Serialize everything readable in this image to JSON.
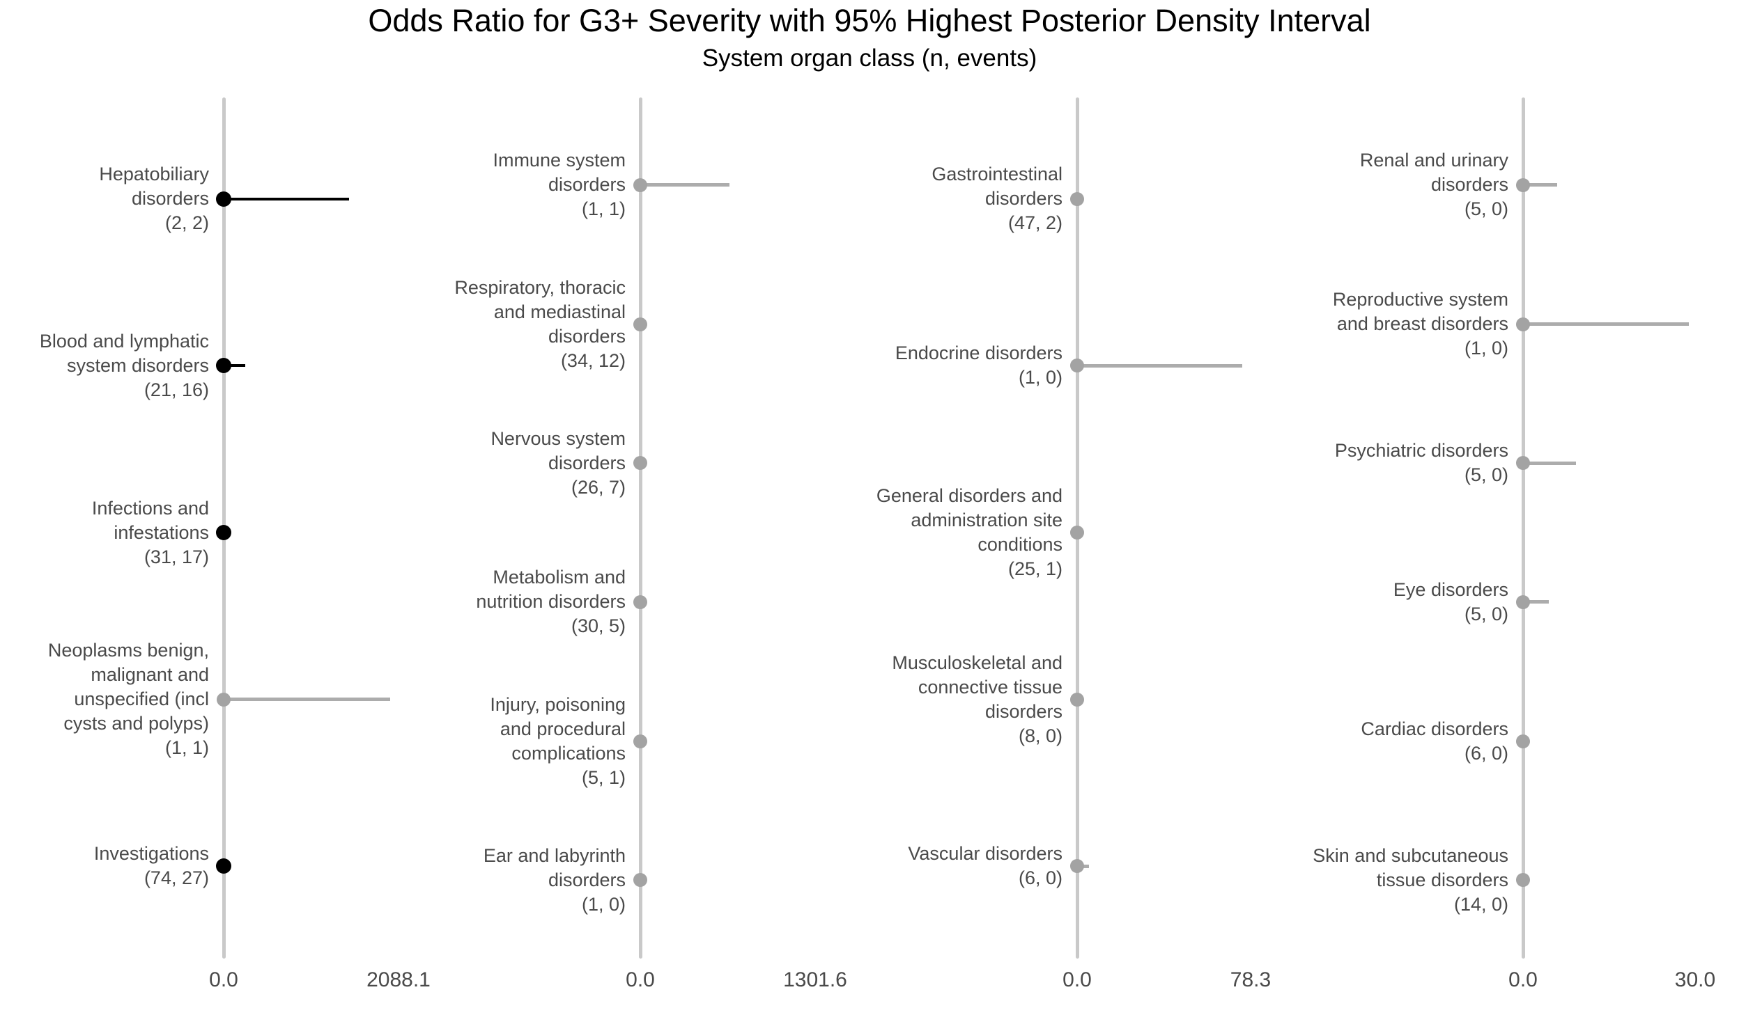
{
  "chart_data": {
    "type": "scatter",
    "subtype": "forest-plot-dot-interval",
    "title": "Odds Ratio for G3+ Severity with 95% Highest Posterior Density Interval",
    "subtitle": "System organ class (n, events)",
    "legend_position": "none",
    "grid": false,
    "style": {
      "black": "#000000",
      "gray_point": "#a3a3a3",
      "gray_line": "#acacac",
      "axis_line": "#c9c9c9",
      "label_text": "#4a4a4a",
      "title_text": "#000000",
      "background": "#ffffff"
    },
    "panels": [
      {
        "x_min": 0.0,
        "x_max": 2088.1,
        "x_tick_labels": [
          "0.0",
          "2088.1"
        ],
        "rows": [
          {
            "label_lines": [
              "Hepatobiliary",
              "disorders"
            ],
            "n": 2,
            "events": 2,
            "n_events_label": "(2, 2)",
            "or_point": 0.0,
            "hpd_lower": 0.0,
            "hpd_upper": 1497,
            "emphasis": "black"
          },
          {
            "label_lines": [
              "Blood and lymphatic",
              "system disorders"
            ],
            "n": 21,
            "events": 16,
            "n_events_label": "(21, 16)",
            "or_point": 0.0,
            "hpd_lower": 0.0,
            "hpd_upper": 258,
            "emphasis": "black"
          },
          {
            "label_lines": [
              "Infections and",
              "infestations"
            ],
            "n": 31,
            "events": 17,
            "n_events_label": "(31, 17)",
            "or_point": 0.0,
            "hpd_lower": 0.0,
            "hpd_upper": 0,
            "emphasis": "black"
          },
          {
            "label_lines": [
              "Neoplasms benign,",
              "malignant and",
              "unspecified (incl",
              "cysts and polyps)"
            ],
            "n": 1,
            "events": 1,
            "n_events_label": "(1, 1)",
            "or_point": 0.0,
            "hpd_lower": 0.0,
            "hpd_upper": 1988,
            "emphasis": "gray"
          },
          {
            "label_lines": [
              "Investigations"
            ],
            "n": 74,
            "events": 27,
            "n_events_label": "(74, 27)",
            "or_point": 0.0,
            "hpd_lower": 0.0,
            "hpd_upper": 0,
            "emphasis": "black"
          }
        ]
      },
      {
        "x_min": 0.0,
        "x_max": 1301.6,
        "x_tick_labels": [
          "0.0",
          "1301.6"
        ],
        "rows": [
          {
            "label_lines": [
              "Immune system",
              "disorders"
            ],
            "n": 1,
            "events": 1,
            "n_events_label": "(1, 1)",
            "or_point": 0.0,
            "hpd_lower": 0.0,
            "hpd_upper": 664,
            "emphasis": "gray"
          },
          {
            "label_lines": [
              "Respiratory, thoracic",
              "and mediastinal",
              "disorders"
            ],
            "n": 34,
            "events": 12,
            "n_events_label": "(34, 12)",
            "or_point": 0.0,
            "hpd_lower": 0.0,
            "hpd_upper": 0,
            "emphasis": "gray"
          },
          {
            "label_lines": [
              "Nervous system",
              "disorders"
            ],
            "n": 26,
            "events": 7,
            "n_events_label": "(26, 7)",
            "or_point": 0.0,
            "hpd_lower": 0.0,
            "hpd_upper": 0,
            "emphasis": "gray"
          },
          {
            "label_lines": [
              "Metabolism and",
              "nutrition disorders"
            ],
            "n": 30,
            "events": 5,
            "n_events_label": "(30, 5)",
            "or_point": 0.0,
            "hpd_lower": 0.0,
            "hpd_upper": 0,
            "emphasis": "gray"
          },
          {
            "label_lines": [
              "Injury, poisoning",
              "and procedural",
              "complications"
            ],
            "n": 5,
            "events": 1,
            "n_events_label": "(5, 1)",
            "or_point": 0.0,
            "hpd_lower": 0.0,
            "hpd_upper": 0,
            "emphasis": "gray"
          },
          {
            "label_lines": [
              "Ear and labyrinth",
              "disorders"
            ],
            "n": 1,
            "events": 0,
            "n_events_label": "(1, 0)",
            "or_point": 0.0,
            "hpd_lower": 0.0,
            "hpd_upper": 0,
            "emphasis": "gray"
          }
        ]
      },
      {
        "x_min": 0.0,
        "x_max": 78.3,
        "x_tick_labels": [
          "0.0",
          "78.3"
        ],
        "rows": [
          {
            "label_lines": [
              "Gastrointestinal",
              "disorders"
            ],
            "n": 47,
            "events": 2,
            "n_events_label": "(47, 2)",
            "or_point": 0.0,
            "hpd_lower": 0.0,
            "hpd_upper": 0,
            "emphasis": "gray"
          },
          {
            "label_lines": [
              "Endocrine disorders"
            ],
            "n": 1,
            "events": 0,
            "n_events_label": "(1, 0)",
            "or_point": 0.0,
            "hpd_lower": 0.0,
            "hpd_upper": 74.5,
            "emphasis": "gray"
          },
          {
            "label_lines": [
              "General disorders and",
              "administration site",
              "conditions"
            ],
            "n": 25,
            "events": 1,
            "n_events_label": "(25, 1)",
            "or_point": 0.0,
            "hpd_lower": 0.0,
            "hpd_upper": 0,
            "emphasis": "gray"
          },
          {
            "label_lines": [
              "Musculoskeletal and",
              "connective tissue",
              "disorders"
            ],
            "n": 8,
            "events": 0,
            "n_events_label": "(8, 0)",
            "or_point": 0.0,
            "hpd_lower": 0.0,
            "hpd_upper": 0,
            "emphasis": "gray"
          },
          {
            "label_lines": [
              "Vascular disorders"
            ],
            "n": 6,
            "events": 0,
            "n_events_label": "(6, 0)",
            "or_point": 0.0,
            "hpd_lower": 0.0,
            "hpd_upper": 5.5,
            "emphasis": "gray"
          }
        ]
      },
      {
        "x_min": 0.0,
        "x_max": 30.0,
        "x_tick_labels": [
          "0.0",
          "30.0"
        ],
        "rows": [
          {
            "label_lines": [
              "Renal and urinary",
              "disorders"
            ],
            "n": 5,
            "events": 0,
            "n_events_label": "(5, 0)",
            "or_point": 0.0,
            "hpd_lower": 0.0,
            "hpd_upper": 6.0,
            "emphasis": "gray"
          },
          {
            "label_lines": [
              "Reproductive system",
              "and breast disorders"
            ],
            "n": 1,
            "events": 0,
            "n_events_label": "(1, 0)",
            "or_point": 0.0,
            "hpd_lower": 0.0,
            "hpd_upper": 28.9,
            "emphasis": "gray"
          },
          {
            "label_lines": [
              "Psychiatric disorders"
            ],
            "n": 5,
            "events": 0,
            "n_events_label": "(5, 0)",
            "or_point": 0.0,
            "hpd_lower": 0.0,
            "hpd_upper": 9.2,
            "emphasis": "gray"
          },
          {
            "label_lines": [
              "Eye disorders"
            ],
            "n": 5,
            "events": 0,
            "n_events_label": "(5, 0)",
            "or_point": 0.0,
            "hpd_lower": 0.0,
            "hpd_upper": 4.5,
            "emphasis": "gray"
          },
          {
            "label_lines": [
              "Cardiac disorders"
            ],
            "n": 6,
            "events": 0,
            "n_events_label": "(6, 0)",
            "or_point": 0.0,
            "hpd_lower": 0.0,
            "hpd_upper": 0,
            "emphasis": "gray"
          },
          {
            "label_lines": [
              "Skin and subcutaneous",
              "tissue disorders"
            ],
            "n": 14,
            "events": 0,
            "n_events_label": "(14, 0)",
            "or_point": 0.0,
            "hpd_lower": 0.0,
            "hpd_upper": 0,
            "emphasis": "gray"
          }
        ]
      }
    ]
  }
}
